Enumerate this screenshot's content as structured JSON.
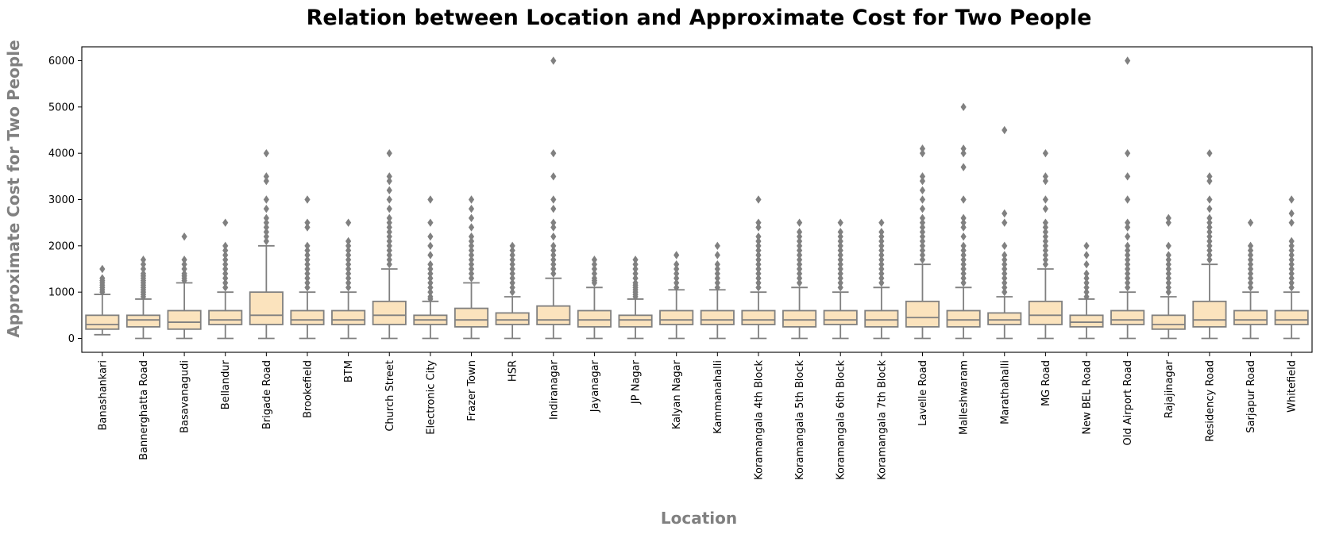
{
  "chart_data": {
    "type": "box",
    "title": "Relation between Location and Approximate Cost for Two People",
    "xlabel": "Location",
    "ylabel": "Approximate Cost for Two People",
    "ylim": [
      -300,
      6300
    ],
    "yticks": [
      0,
      1000,
      2000,
      3000,
      4000,
      5000,
      6000
    ],
    "grid": false,
    "colors": {
      "box_fill": "#fbe3bd",
      "line": "#808080",
      "outlier": "#808080"
    },
    "categories": [
      "Banashankari",
      "Bannerghatta Road",
      "Basavanagudi",
      "Bellandur",
      "Brigade Road",
      "Brookefield",
      "BTM",
      "Church Street",
      "Electronic City",
      "Frazer Town",
      "HSR",
      "Indiranagar",
      "Jayanagar",
      "JP Nagar",
      "Kalyan Nagar",
      "Kammanahalli",
      "Koramangala 4th Block",
      "Koramangala 5th Block",
      "Koramangala 6th Block",
      "Koramangala 7th Block",
      "Lavelle Road",
      "Malleshwaram",
      "Marathahalli",
      "MG Road",
      "New BEL Road",
      "Old Airport Road",
      "Rajajinagar",
      "Residency Road",
      "Sarjapur Road",
      "Whitefield"
    ],
    "boxes": [
      {
        "whislo": 80,
        "q1": 200,
        "med": 300,
        "q3": 500,
        "whishi": 950,
        "fliers": [
          1000,
          1050,
          1100,
          1150,
          1200,
          1250,
          1300,
          1500
        ]
      },
      {
        "whislo": 0,
        "q1": 250,
        "med": 400,
        "q3": 500,
        "whishi": 850,
        "fliers": [
          900,
          950,
          1000,
          1050,
          1100,
          1150,
          1200,
          1250,
          1300,
          1350,
          1400,
          1500,
          1600,
          1700
        ]
      },
      {
        "whislo": 0,
        "q1": 200,
        "med": 350,
        "q3": 600,
        "whishi": 1200,
        "fliers": [
          1250,
          1300,
          1350,
          1400,
          1500,
          1600,
          1700,
          2200
        ]
      },
      {
        "whislo": 0,
        "q1": 300,
        "med": 400,
        "q3": 600,
        "whishi": 1000,
        "fliers": [
          1100,
          1200,
          1300,
          1400,
          1500,
          1600,
          1700,
          1800,
          1900,
          2000,
          2500
        ]
      },
      {
        "whislo": 0,
        "q1": 300,
        "med": 500,
        "q3": 1000,
        "whishi": 2000,
        "fliers": [
          2100,
          2200,
          2300,
          2400,
          2500,
          2600,
          2800,
          3000,
          3400,
          3500,
          4000
        ]
      },
      {
        "whislo": 0,
        "q1": 300,
        "med": 400,
        "q3": 600,
        "whishi": 1000,
        "fliers": [
          1100,
          1200,
          1300,
          1400,
          1500,
          1600,
          1700,
          1800,
          1900,
          2000,
          2400,
          2500,
          3000
        ]
      },
      {
        "whislo": 0,
        "q1": 300,
        "med": 400,
        "q3": 600,
        "whishi": 1000,
        "fliers": [
          1100,
          1200,
          1300,
          1400,
          1500,
          1600,
          1700,
          1800,
          1900,
          2000,
          2100,
          2500
        ]
      },
      {
        "whislo": 0,
        "q1": 300,
        "med": 500,
        "q3": 800,
        "whishi": 1500,
        "fliers": [
          1600,
          1700,
          1800,
          1900,
          2000,
          2100,
          2200,
          2300,
          2400,
          2500,
          2600,
          2800,
          3000,
          3200,
          3400,
          3500,
          4000
        ]
      },
      {
        "whislo": 0,
        "q1": 300,
        "med": 400,
        "q3": 500,
        "whishi": 800,
        "fliers": [
          850,
          900,
          1000,
          1100,
          1200,
          1300,
          1400,
          1500,
          1600,
          1800,
          2000,
          2200,
          2500,
          3000
        ]
      },
      {
        "whislo": 0,
        "q1": 250,
        "med": 400,
        "q3": 650,
        "whishi": 1200,
        "fliers": [
          1300,
          1400,
          1500,
          1600,
          1700,
          1800,
          1900,
          2000,
          2100,
          2200,
          2400,
          2600,
          2800,
          3000
        ]
      },
      {
        "whislo": 0,
        "q1": 300,
        "med": 400,
        "q3": 550,
        "whishi": 900,
        "fliers": [
          1000,
          1100,
          1200,
          1300,
          1400,
          1500,
          1600,
          1700,
          1800,
          1900,
          2000
        ]
      },
      {
        "whislo": 0,
        "q1": 300,
        "med": 400,
        "q3": 700,
        "whishi": 1300,
        "fliers": [
          1400,
          1500,
          1600,
          1700,
          1800,
          1900,
          2000,
          2200,
          2400,
          2500,
          2800,
          3000,
          3500,
          4000,
          6000
        ]
      },
      {
        "whislo": 0,
        "q1": 250,
        "med": 400,
        "q3": 600,
        "whishi": 1100,
        "fliers": [
          1200,
          1250,
          1300,
          1400,
          1500,
          1600,
          1700
        ]
      },
      {
        "whislo": 0,
        "q1": 250,
        "med": 400,
        "q3": 500,
        "whishi": 850,
        "fliers": [
          900,
          950,
          1000,
          1050,
          1100,
          1150,
          1200,
          1300,
          1400,
          1500,
          1600,
          1700
        ]
      },
      {
        "whislo": 0,
        "q1": 300,
        "med": 400,
        "q3": 600,
        "whishi": 1050,
        "fliers": [
          1100,
          1200,
          1300,
          1400,
          1500,
          1600,
          1800
        ]
      },
      {
        "whislo": 0,
        "q1": 300,
        "med": 400,
        "q3": 600,
        "whishi": 1050,
        "fliers": [
          1100,
          1200,
          1300,
          1400,
          1500,
          1600,
          1800,
          2000
        ]
      },
      {
        "whislo": 0,
        "q1": 300,
        "med": 400,
        "q3": 600,
        "whishi": 1000,
        "fliers": [
          1100,
          1200,
          1300,
          1400,
          1500,
          1600,
          1700,
          1800,
          1900,
          2000,
          2100,
          2200,
          2400,
          2500,
          3000
        ]
      },
      {
        "whislo": 0,
        "q1": 250,
        "med": 400,
        "q3": 600,
        "whishi": 1100,
        "fliers": [
          1200,
          1300,
          1400,
          1500,
          1600,
          1700,
          1800,
          1900,
          2000,
          2100,
          2200,
          2300,
          2500
        ]
      },
      {
        "whislo": 0,
        "q1": 300,
        "med": 400,
        "q3": 600,
        "whishi": 1000,
        "fliers": [
          1100,
          1200,
          1300,
          1400,
          1500,
          1600,
          1700,
          1800,
          1900,
          2000,
          2100,
          2200,
          2300,
          2500
        ]
      },
      {
        "whislo": 0,
        "q1": 250,
        "med": 400,
        "q3": 600,
        "whishi": 1100,
        "fliers": [
          1200,
          1300,
          1400,
          1500,
          1600,
          1700,
          1800,
          1900,
          2000,
          2100,
          2200,
          2300,
          2500
        ]
      },
      {
        "whislo": 0,
        "q1": 250,
        "med": 450,
        "q3": 800,
        "whishi": 1600,
        "fliers": [
          1700,
          1800,
          1900,
          2000,
          2100,
          2200,
          2300,
          2400,
          2500,
          2600,
          2800,
          3000,
          3200,
          3400,
          3500,
          4000,
          4100
        ]
      },
      {
        "whislo": 0,
        "q1": 250,
        "med": 400,
        "q3": 600,
        "whishi": 1100,
        "fliers": [
          1200,
          1300,
          1400,
          1500,
          1600,
          1700,
          1800,
          1900,
          2000,
          2200,
          2400,
          2500,
          2600,
          3000,
          3700,
          4000,
          4100,
          5000
        ]
      },
      {
        "whislo": 0,
        "q1": 300,
        "med": 400,
        "q3": 550,
        "whishi": 900,
        "fliers": [
          1000,
          1100,
          1200,
          1300,
          1400,
          1500,
          1600,
          1700,
          1800,
          2000,
          2500,
          2700,
          4500
        ]
      },
      {
        "whislo": 0,
        "q1": 300,
        "med": 500,
        "q3": 800,
        "whishi": 1500,
        "fliers": [
          1600,
          1700,
          1800,
          1900,
          2000,
          2100,
          2200,
          2300,
          2400,
          2500,
          2800,
          3000,
          3400,
          3500,
          4000
        ]
      },
      {
        "whislo": 0,
        "q1": 250,
        "med": 350,
        "q3": 500,
        "whishi": 850,
        "fliers": [
          900,
          1000,
          1100,
          1200,
          1300,
          1400,
          1600,
          1800,
          2000
        ]
      },
      {
        "whislo": 0,
        "q1": 300,
        "med": 400,
        "q3": 600,
        "whishi": 1000,
        "fliers": [
          1100,
          1200,
          1300,
          1400,
          1500,
          1600,
          1700,
          1800,
          1900,
          2000,
          2200,
          2400,
          2500,
          3000,
          3500,
          4000,
          6000
        ]
      },
      {
        "whislo": 0,
        "q1": 200,
        "med": 300,
        "q3": 500,
        "whishi": 900,
        "fliers": [
          1000,
          1100,
          1200,
          1300,
          1400,
          1500,
          1600,
          1700,
          1800,
          2000,
          2500,
          2600
        ]
      },
      {
        "whislo": 0,
        "q1": 250,
        "med": 400,
        "q3": 800,
        "whishi": 1600,
        "fliers": [
          1700,
          1800,
          1900,
          2000,
          2100,
          2200,
          2300,
          2400,
          2500,
          2600,
          2800,
          3000,
          3400,
          3500,
          4000
        ]
      },
      {
        "whislo": 0,
        "q1": 300,
        "med": 400,
        "q3": 600,
        "whishi": 1000,
        "fliers": [
          1100,
          1200,
          1300,
          1400,
          1500,
          1600,
          1700,
          1800,
          1900,
          2000,
          2500
        ]
      },
      {
        "whislo": 0,
        "q1": 300,
        "med": 400,
        "q3": 600,
        "whishi": 1000,
        "fliers": [
          1100,
          1200,
          1300,
          1400,
          1500,
          1600,
          1700,
          1800,
          1900,
          2000,
          2100,
          2500,
          2700,
          3000
        ]
      }
    ]
  }
}
